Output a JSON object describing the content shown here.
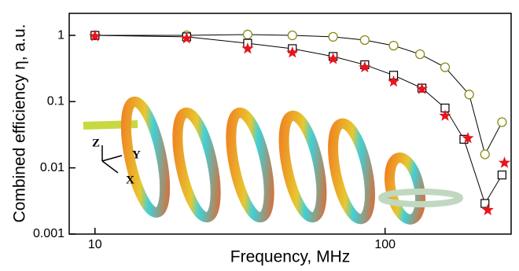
{
  "chart_data": {
    "type": "scatter",
    "x_label": "Frequency, MHz",
    "y_label": "Combined efficiency η, a.u.",
    "xlog": true,
    "ylog": true,
    "xlim": [
      8.15,
      272
    ],
    "ylim": [
      0.001,
      2.15
    ],
    "xticks": [
      10,
      100
    ],
    "yticks": [
      0.001,
      0.01,
      0.1,
      1
    ],
    "annotations": [
      "Z",
      "Y",
      "X"
    ],
    "series": [
      {
        "color": "#8a8a1a",
        "marker": "circle",
        "line": true,
        "x": [
          10,
          20.7,
          33.6,
          47.9,
          66.2,
          85.1,
          107,
          132,
          161,
          195,
          221,
          253
        ],
        "values": [
          1,
          1,
          1.03,
          1,
          0.95,
          0.85,
          0.7,
          0.52,
          0.33,
          0.128,
          0.016,
          0.049
        ]
      },
      {
        "color": "#000000",
        "marker": "square",
        "line": true,
        "x": [
          10,
          20.7,
          33.6,
          47.9,
          66.2,
          85.1,
          107,
          134,
          161,
          187,
          221,
          253
        ],
        "values": [
          1,
          0.95,
          0.76,
          0.63,
          0.48,
          0.36,
          0.25,
          0.16,
          0.08,
          0.027,
          0.0029,
          0.0078
        ]
      },
      {
        "color": "#e8141e",
        "marker": "star",
        "line": false,
        "x": [
          10,
          20.7,
          33.6,
          47.9,
          66.2,
          85.1,
          107,
          134,
          161,
          193,
          226,
          258
        ],
        "values": [
          0.97,
          0.9,
          0.63,
          0.55,
          0.44,
          0.33,
          0.2,
          0.155,
          0.061,
          0.028,
          0.0023,
          0.0119
        ]
      }
    ]
  }
}
